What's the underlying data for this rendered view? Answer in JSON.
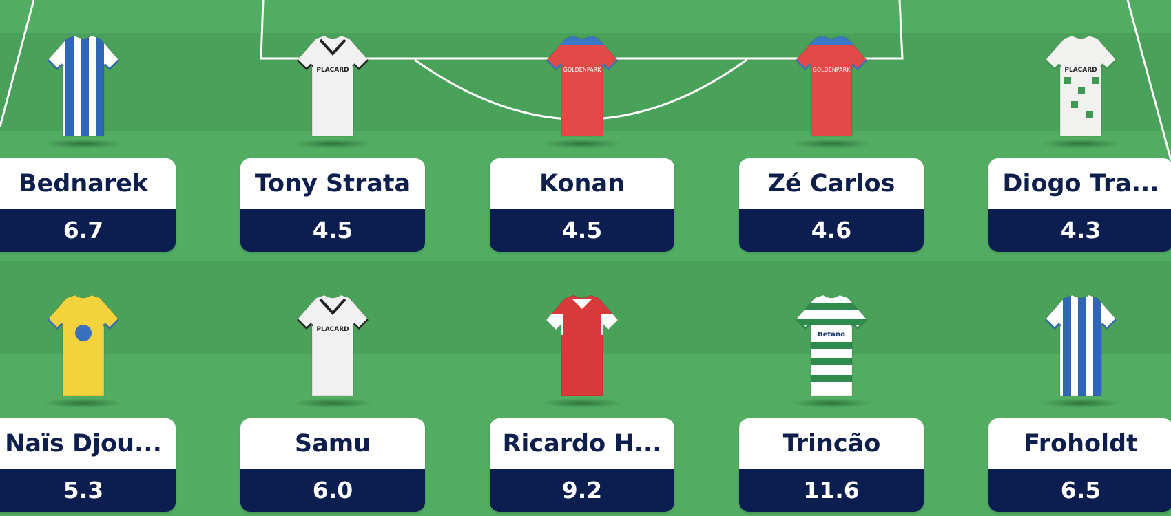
{
  "colors": {
    "pitch_light": "#52ad63",
    "pitch_dark": "#4aa25a",
    "card_name_bg": "#ffffff",
    "card_price_bg": "#0c1d4f",
    "name_text": "#0e1f4d"
  },
  "rows": [
    [
      {
        "name": "Bednarek",
        "price": "6.7",
        "kit": "blue-white-stripes"
      },
      {
        "name": "Tony Strata",
        "price": "4.5",
        "kit": "white-black"
      },
      {
        "name": "Konan",
        "price": "4.5",
        "kit": "red-blue"
      },
      {
        "name": "Zé Carlos",
        "price": "4.6",
        "kit": "red-blue"
      },
      {
        "name": "Diogo Tra...",
        "price": "4.3",
        "kit": "white-green-pattern"
      }
    ],
    [
      {
        "name": "Naïs Djou...",
        "price": "5.3",
        "kit": "yellow"
      },
      {
        "name": "Samu",
        "price": "6.0",
        "kit": "white-black"
      },
      {
        "name": "Ricardo H...",
        "price": "9.2",
        "kit": "red-white"
      },
      {
        "name": "Trincão",
        "price": "11.6",
        "kit": "green-white-hoops"
      },
      {
        "name": "Froholdt",
        "price": "6.5",
        "kit": "blue-white-stripes"
      }
    ]
  ]
}
